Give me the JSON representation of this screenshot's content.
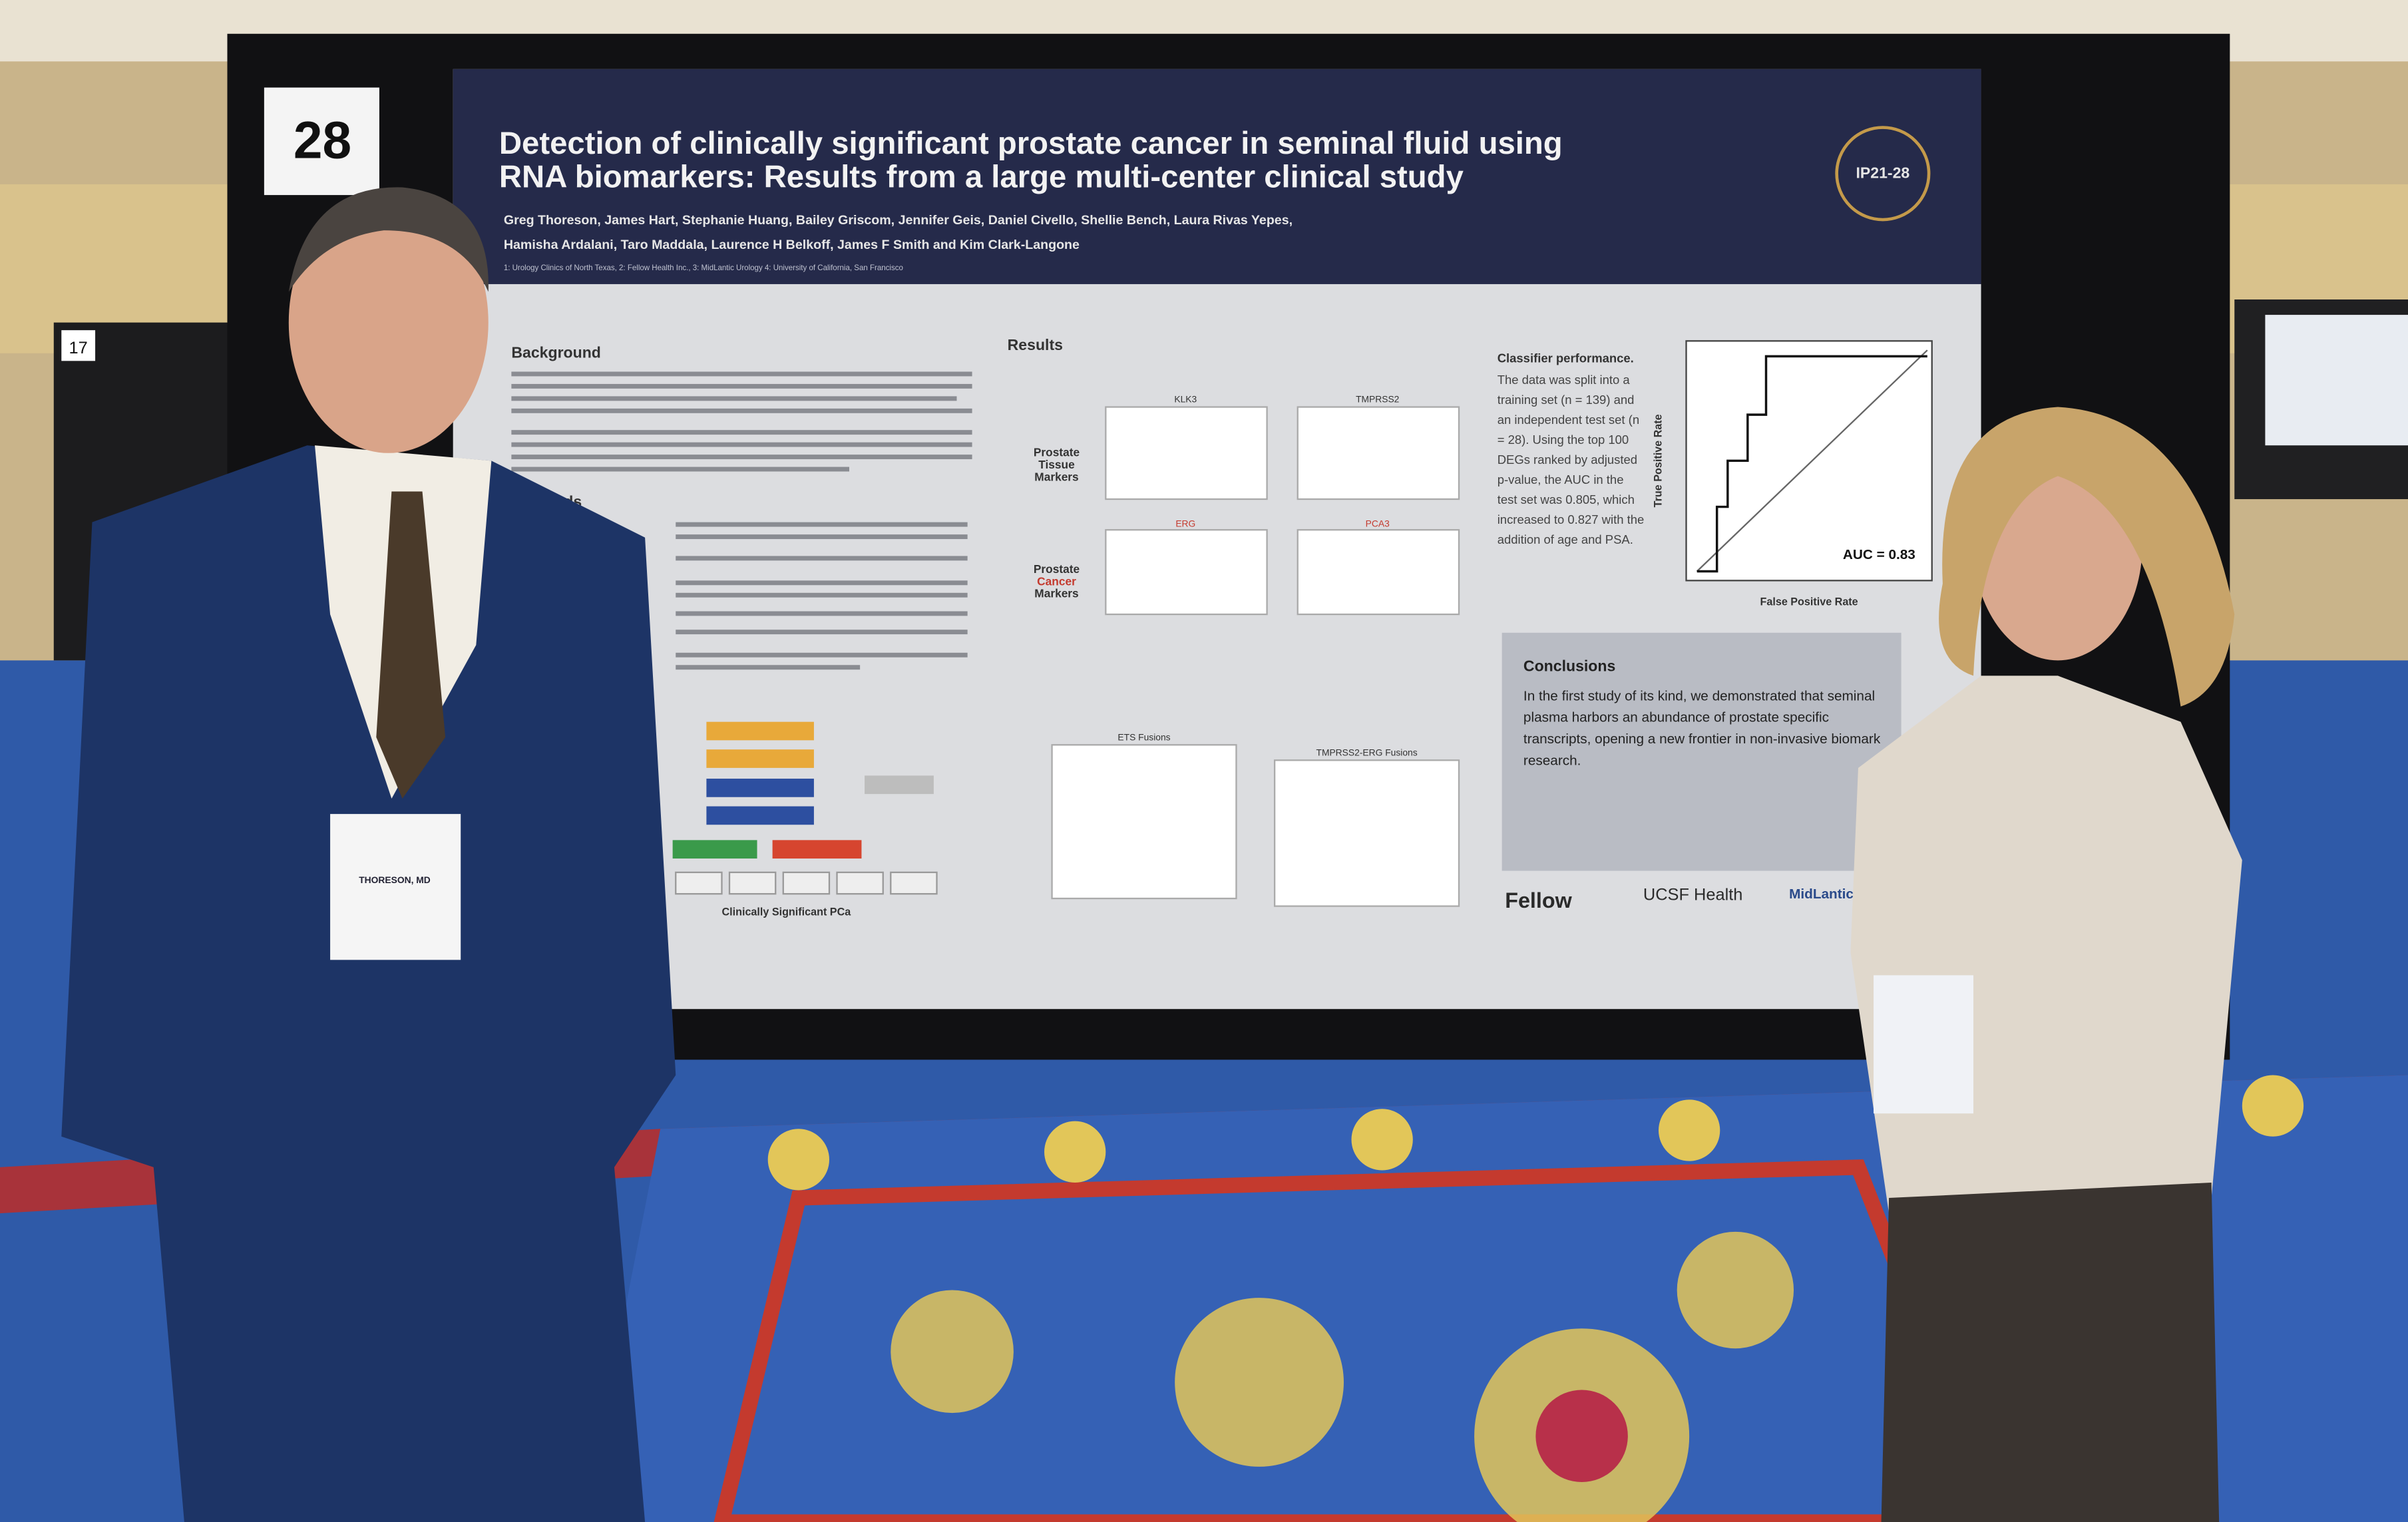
{
  "sign": {
    "number": "28",
    "side_number": "17"
  },
  "poster": {
    "title_lines": [
      "Detection of clinically significant prostate cancer in seminal fluid using",
      "RNA biomarkers: Results from a large multi-center clinical study"
    ],
    "authors": [
      "Greg Thoreson, James Hart, Stephanie Huang, Bailey Griscom, Jennifer Geis, Daniel Civello, Shellie Bench, Laura Rivas Yepes,",
      "Hamisha Ardalani, Taro Maddala, Laurence H Belkoff, James F Smith and Kim Clark-Langone"
    ],
    "affiliations": "1: Urology Clinics of North Texas, 2: Fellow Health Inc., 3: MidLantic Urology 4: University of California, San Francisco",
    "badge": "IP21-28",
    "sections": {
      "background": "Background",
      "methods": "hods",
      "results": "Results",
      "classifier": "Classifier performance.",
      "conclusions": "Conclusions"
    },
    "classifier_text": [
      "The data was split into a",
      "training set (n = 139) and",
      "an independent test set (n",
      "= 28). Using the top 100",
      "DEGs ranked by adjusted",
      "p-value, the AUC in the",
      "test set was 0.805, which",
      "increased to 0.827 with the",
      "addition of age and PSA."
    ],
    "roc": {
      "y_label": "True Positive Rate",
      "x_label": "False Positive Rate",
      "auc": "AUC = 0.83"
    },
    "panels": {
      "tissue_label": [
        "Prostate",
        "Tissue",
        "Markers"
      ],
      "cancer_label": [
        "Prostate",
        "Cancer",
        "Markers"
      ],
      "genes": [
        "KLK3",
        "TMPRSS2",
        "ERG",
        "PCA3"
      ],
      "fusions": [
        "ETS Fusions",
        "TMPRSS2-ERG Fusions"
      ]
    },
    "flowchart": {
      "bottom": "Clinically Significant PCa"
    },
    "conclusion_text": [
      "In the first study of its kind, we demonstrated that seminal",
      "plasma harbors an abundance of prostate specific",
      "transcripts, opening a new frontier in non-invasive biomark",
      "research."
    ],
    "logos": [
      "Fellow",
      "UCSF Health",
      "MidLantic"
    ]
  },
  "name_badge": "THORESON, MD"
}
